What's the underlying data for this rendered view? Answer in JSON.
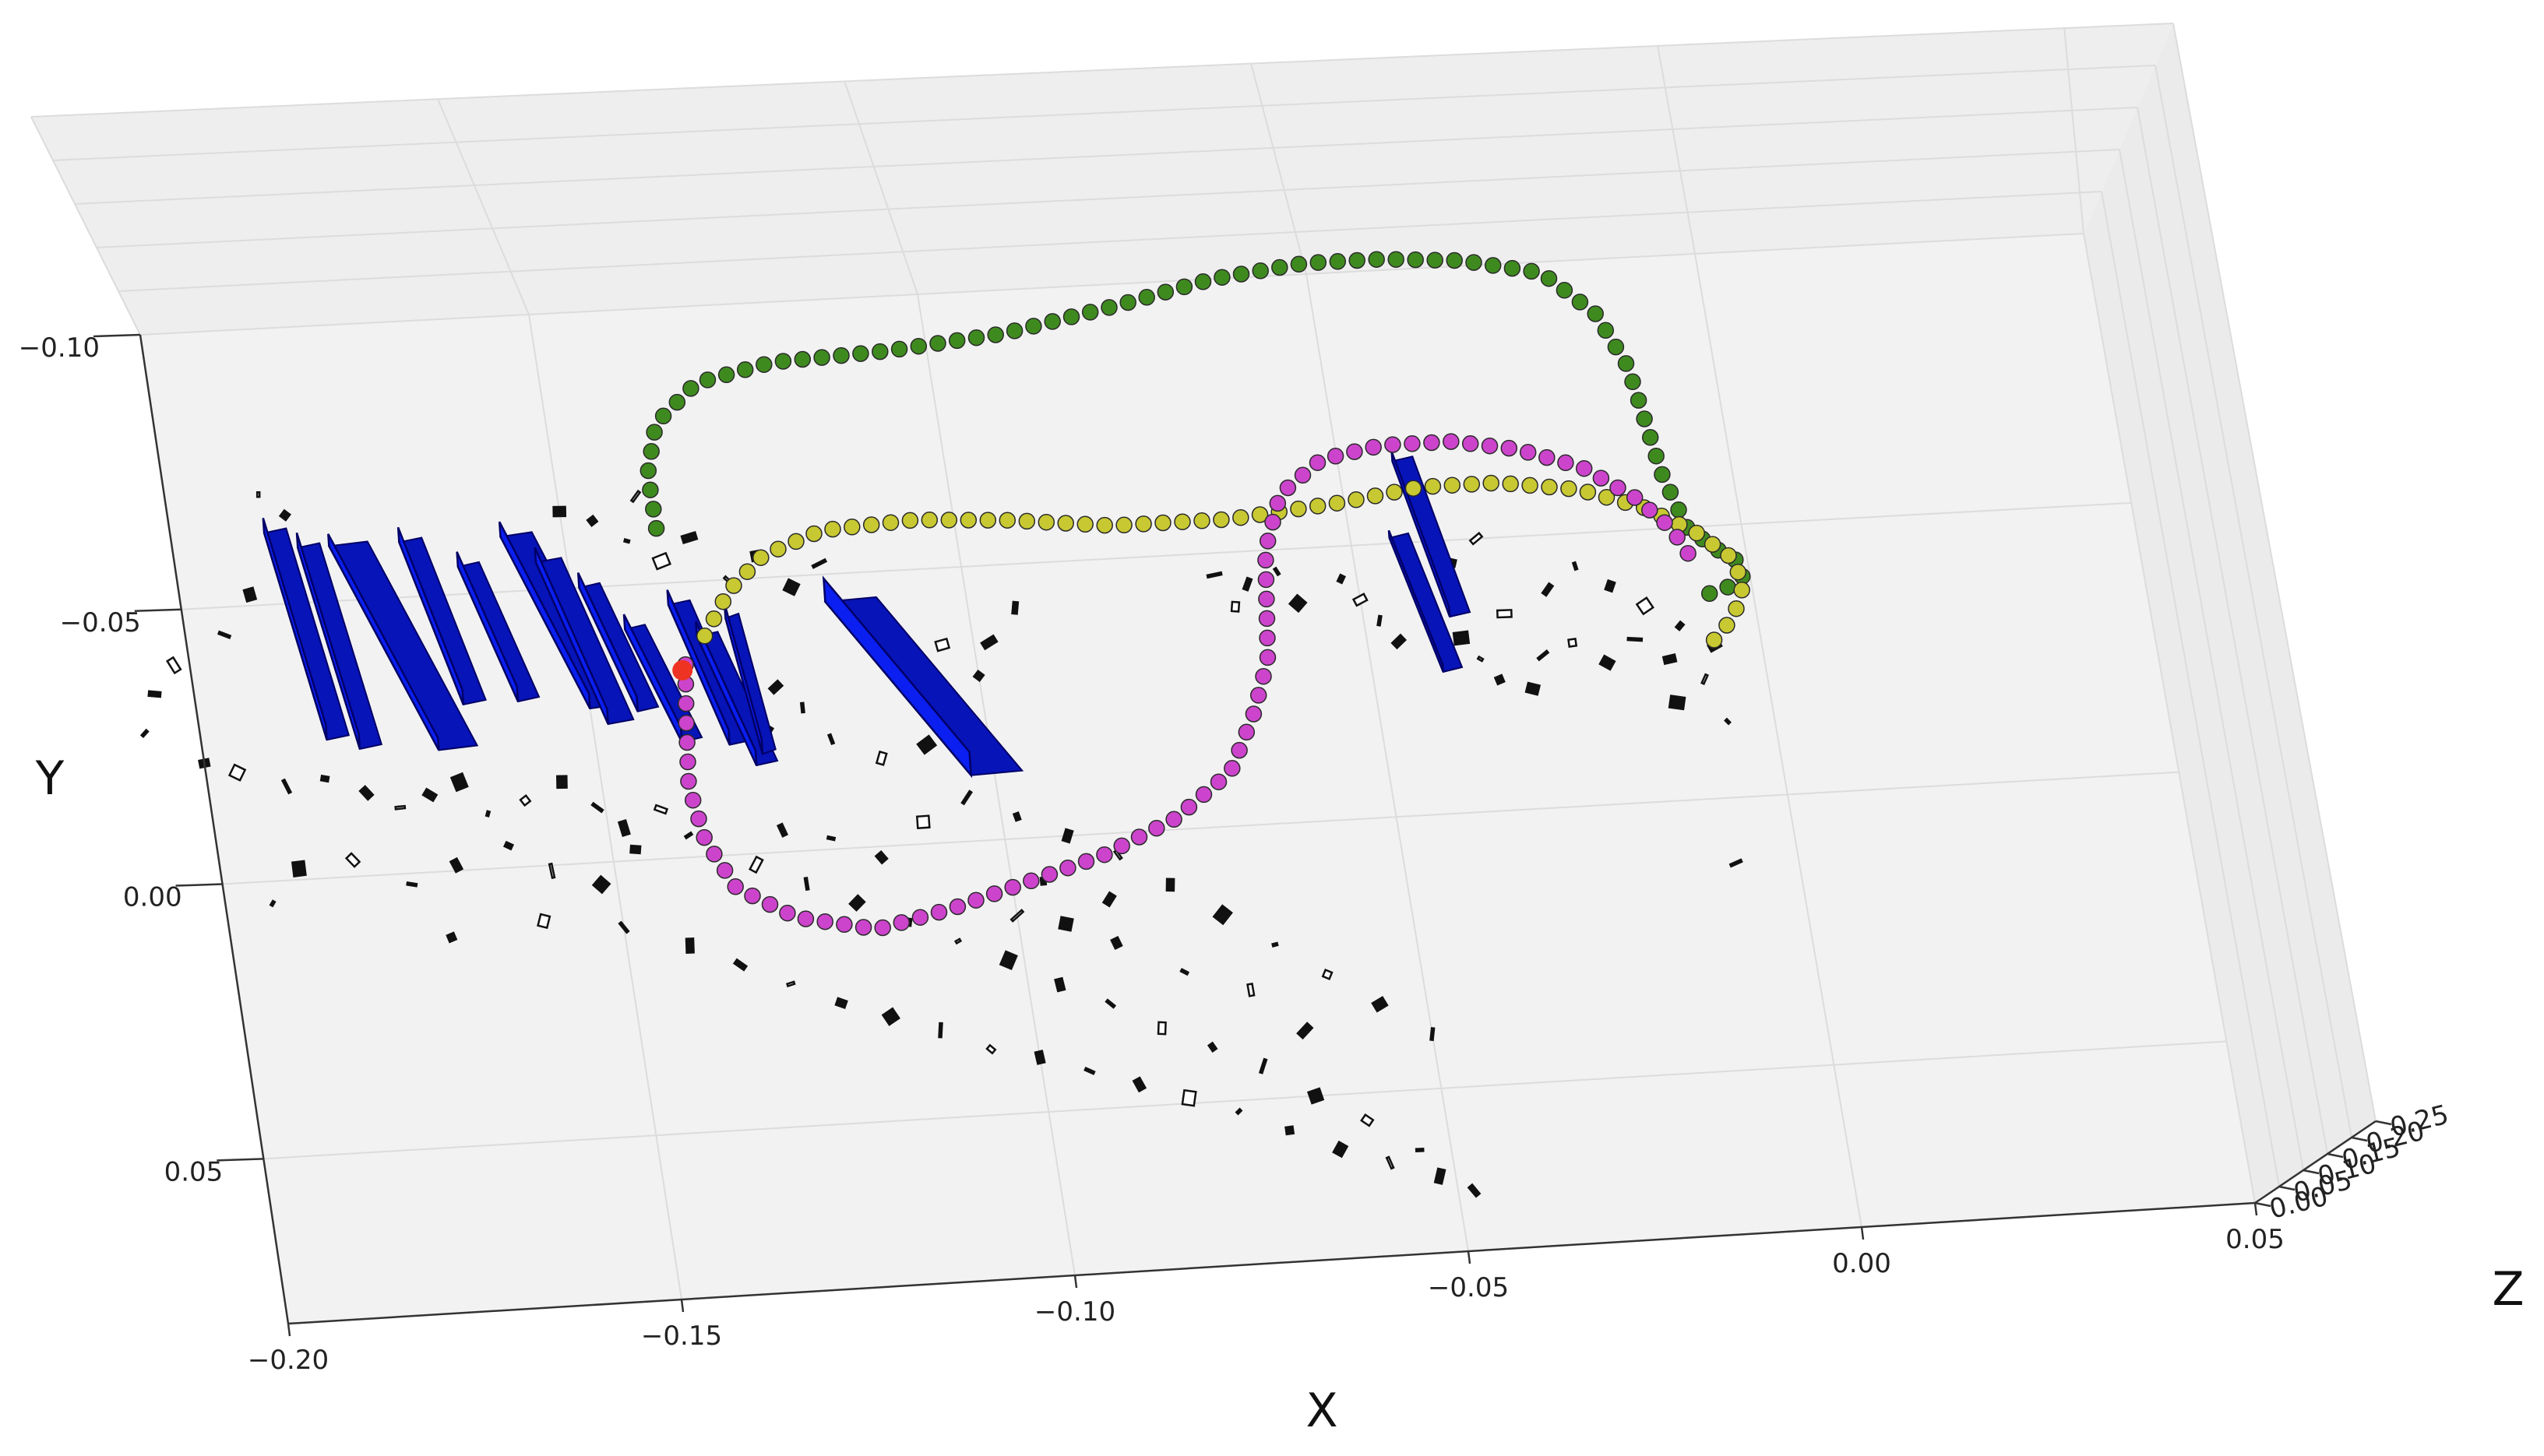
{
  "chart_data": {
    "type": "scatter",
    "projection": "3d",
    "grid": true,
    "axes": {
      "x": {
        "label": "X",
        "lim": [
          -0.2,
          0.05
        ],
        "ticks": [
          "−0.20",
          "−0.15",
          "−0.10",
          "−0.05",
          "0.00",
          "0.05"
        ]
      },
      "y": {
        "label": "Y",
        "lim": [
          -0.1,
          0.08
        ],
        "ticks": [
          "−0.10",
          "−0.05",
          "0.00",
          "0.05"
        ]
      },
      "z": {
        "label": "Z",
        "lim": [
          0.0,
          0.25
        ],
        "ticks": [
          "0.00",
          "0.05",
          "0.10",
          "0.15",
          "0.20",
          "0.25"
        ]
      }
    },
    "colors": {
      "pane": "#f2f2f2",
      "grid": "#dcdcdc",
      "obstacle_fill": "#0a1ff0",
      "obstacle_edge": "#000066",
      "trajectory_green": "#3f8a1f",
      "trajectory_yellow": "#c8c832",
      "trajectory_magenta": "#cc44cc",
      "start_point": "#ee3322",
      "landmark_outline": "#111111"
    },
    "series": [
      {
        "color": "trajectory_green",
        "points": [
          [
            -0.138,
            -0.06
          ],
          [
            -0.138,
            -0.07
          ],
          [
            -0.136,
            -0.079
          ],
          [
            -0.13,
            -0.086
          ],
          [
            -0.12,
            -0.089
          ],
          [
            -0.105,
            -0.09
          ],
          [
            -0.09,
            -0.092
          ],
          [
            -0.075,
            -0.096
          ],
          [
            -0.062,
            -0.1
          ],
          [
            -0.05,
            -0.102
          ],
          [
            -0.04,
            -0.102
          ],
          [
            -0.03,
            -0.101
          ],
          [
            -0.02,
            -0.098
          ],
          [
            -0.014,
            -0.09
          ],
          [
            -0.011,
            -0.08
          ],
          [
            -0.01,
            -0.07
          ],
          [
            -0.009,
            -0.06
          ],
          [
            -0.007,
            -0.05
          ],
          [
            -0.004,
            -0.046
          ],
          [
            -0.001,
            -0.043
          ],
          [
            -0.001,
            -0.04
          ],
          [
            -0.004,
            -0.038
          ],
          [
            -0.008,
            -0.037
          ]
        ]
      },
      {
        "color": "trajectory_yellow",
        "points": [
          [
            -0.134,
            -0.04
          ],
          [
            -0.13,
            -0.048
          ],
          [
            -0.125,
            -0.054
          ],
          [
            -0.117,
            -0.058
          ],
          [
            -0.105,
            -0.059
          ],
          [
            -0.093,
            -0.058
          ],
          [
            -0.08,
            -0.056
          ],
          [
            -0.065,
            -0.056
          ],
          [
            -0.05,
            -0.058
          ],
          [
            -0.04,
            -0.06
          ],
          [
            -0.03,
            -0.06
          ],
          [
            -0.02,
            -0.058
          ],
          [
            -0.012,
            -0.054
          ],
          [
            -0.006,
            -0.049
          ],
          [
            -0.002,
            -0.044
          ],
          [
            -0.001,
            -0.039
          ],
          [
            -0.003,
            -0.033
          ],
          [
            -0.006,
            -0.029
          ]
        ]
      },
      {
        "color": "trajectory_magenta",
        "points": [
          [
            -0.137,
            -0.035
          ],
          [
            -0.138,
            -0.025
          ],
          [
            -0.139,
            -0.013
          ],
          [
            -0.138,
            -0.003
          ],
          [
            -0.135,
            0.006
          ],
          [
            -0.128,
            0.012
          ],
          [
            -0.118,
            0.015
          ],
          [
            -0.108,
            0.012
          ],
          [
            -0.098,
            0.008
          ],
          [
            -0.088,
            0.004
          ],
          [
            -0.078,
            -0.002
          ],
          [
            -0.07,
            -0.01
          ],
          [
            -0.066,
            -0.02
          ],
          [
            -0.063,
            -0.03
          ],
          [
            -0.062,
            -0.04
          ],
          [
            -0.061,
            -0.05
          ],
          [
            -0.058,
            -0.06
          ],
          [
            -0.052,
            -0.066
          ],
          [
            -0.044,
            -0.068
          ],
          [
            -0.035,
            -0.068
          ],
          [
            -0.027,
            -0.066
          ],
          [
            -0.019,
            -0.062
          ],
          [
            -0.013,
            -0.056
          ],
          [
            -0.009,
            -0.05
          ],
          [
            -0.007,
            -0.044
          ]
        ]
      },
      {
        "color": "start_point",
        "points": [
          [
            -0.1375,
            -0.034
          ]
        ]
      }
    ],
    "obstacles": [
      [
        -0.188,
        -0.063,
        -0.184,
        -0.025,
        0.016
      ],
      [
        -0.184,
        -0.06,
        -0.18,
        -0.023,
        0.016
      ],
      [
        -0.18,
        -0.06,
        -0.17,
        -0.022,
        0.013
      ],
      [
        -0.171,
        -0.06,
        -0.166,
        -0.03,
        0.016
      ],
      [
        -0.164,
        -0.055,
        -0.159,
        -0.03,
        0.016
      ],
      [
        -0.158,
        -0.06,
        -0.15,
        -0.028,
        0.016
      ],
      [
        -0.154,
        -0.055,
        -0.148,
        -0.025,
        0.016
      ],
      [
        -0.149,
        -0.05,
        -0.144,
        -0.027,
        0.016
      ],
      [
        -0.144,
        -0.042,
        -0.139,
        -0.021,
        0.016
      ],
      [
        -0.138,
        -0.046,
        -0.133,
        -0.02,
        0.016
      ],
      [
        -0.135,
        -0.04,
        -0.13,
        -0.016,
        0.016
      ],
      [
        -0.131,
        -0.043,
        -0.129,
        -0.018,
        0.016
      ],
      [
        -0.118,
        -0.045,
        -0.103,
        -0.012,
        0.025
      ],
      [
        -0.043,
        -0.065,
        -0.039,
        -0.036,
        0.01
      ],
      [
        -0.045,
        -0.051,
        -0.041,
        -0.026,
        0.008
      ]
    ],
    "landmarks": [
      [
        -0.188,
        -0.07
      ],
      [
        -0.185,
        -0.066
      ],
      [
        -0.191,
        -0.052
      ],
      [
        -0.195,
        -0.045
      ],
      [
        -0.202,
        -0.04
      ],
      [
        -0.205,
        -0.035
      ],
      [
        -0.207,
        -0.028
      ],
      [
        -0.2,
        -0.022
      ],
      [
        -0.196,
        -0.02
      ],
      [
        -0.19,
        -0.017
      ],
      [
        -0.185,
        -0.018
      ],
      [
        -0.18,
        -0.015
      ],
      [
        -0.176,
        -0.012
      ],
      [
        -0.172,
        -0.014
      ],
      [
        -0.168,
        -0.016
      ],
      [
        -0.165,
        -0.01
      ],
      [
        -0.16,
        -0.012
      ],
      [
        -0.155,
        -0.015
      ],
      [
        -0.151,
        -0.01
      ],
      [
        -0.148,
        -0.006
      ],
      [
        -0.143,
        -0.009
      ],
      [
        -0.14,
        -0.004
      ],
      [
        -0.147,
        -0.002
      ],
      [
        -0.152,
        0.004
      ],
      [
        -0.158,
        0.001
      ],
      [
        -0.163,
        -0.004
      ],
      [
        -0.17,
        -0.001
      ],
      [
        -0.176,
        0.002
      ],
      [
        -0.183,
        -0.003
      ],
      [
        -0.19,
        -0.002
      ],
      [
        -0.194,
        0.004
      ],
      [
        -0.172,
        0.012
      ],
      [
        -0.16,
        0.01
      ],
      [
        -0.15,
        0.012
      ],
      [
        -0.142,
        0.016
      ],
      [
        -0.136,
        0.02
      ],
      [
        -0.13,
        0.024
      ],
      [
        -0.124,
        0.028
      ],
      [
        -0.118,
        0.031
      ],
      [
        -0.112,
        0.034
      ],
      [
        -0.106,
        0.038
      ],
      [
        -0.1,
        0.04
      ],
      [
        -0.094,
        0.043
      ],
      [
        -0.088,
        0.046
      ],
      [
        -0.082,
        0.049
      ],
      [
        -0.076,
        0.052
      ],
      [
        -0.07,
        0.056
      ],
      [
        -0.064,
        0.06
      ],
      [
        -0.058,
        0.063
      ],
      [
        -0.052,
        0.066
      ],
      [
        -0.048,
        0.069
      ],
      [
        -0.054,
        0.061
      ],
      [
        -0.06,
        0.055
      ],
      [
        -0.066,
        0.05
      ],
      [
        -0.072,
        0.044
      ],
      [
        -0.078,
        0.04
      ],
      [
        -0.084,
        0.036
      ],
      [
        -0.09,
        0.031
      ],
      [
        -0.096,
        0.027
      ],
      [
        -0.102,
        0.022
      ],
      [
        -0.108,
        0.018
      ],
      [
        -0.114,
        0.014
      ],
      [
        -0.12,
        0.01
      ],
      [
        -0.126,
        0.006
      ],
      [
        -0.132,
        0.002
      ],
      [
        -0.128,
        -0.004
      ],
      [
        -0.122,
        -0.002
      ],
      [
        -0.116,
        0.002
      ],
      [
        -0.11,
        -0.004
      ],
      [
        -0.104,
        -0.008
      ],
      [
        -0.098,
        -0.004
      ],
      [
        -0.092,
        0.0
      ],
      [
        -0.086,
        0.004
      ],
      [
        -0.08,
        0.01
      ],
      [
        -0.074,
        0.016
      ],
      [
        -0.068,
        0.022
      ],
      [
        -0.062,
        0.028
      ],
      [
        -0.056,
        0.034
      ],
      [
        -0.05,
        0.04
      ],
      [
        -0.066,
        0.038
      ],
      [
        -0.072,
        0.03
      ],
      [
        -0.08,
        0.026
      ],
      [
        -0.088,
        0.02
      ],
      [
        -0.094,
        0.016
      ],
      [
        -0.1,
        0.014
      ],
      [
        -0.096,
        0.008
      ],
      [
        -0.088,
        0.012
      ],
      [
        -0.12,
        -0.02
      ],
      [
        -0.114,
        -0.016
      ],
      [
        -0.108,
        -0.018
      ],
      [
        -0.102,
        -0.022
      ],
      [
        -0.1,
        -0.03
      ],
      [
        -0.104,
        -0.036
      ],
      [
        -0.11,
        -0.038
      ],
      [
        -0.098,
        -0.036
      ],
      [
        -0.094,
        -0.042
      ],
      [
        -0.13,
        -0.05
      ],
      [
        -0.126,
        -0.054
      ],
      [
        -0.122,
        -0.048
      ],
      [
        -0.118,
        -0.052
      ],
      [
        -0.114,
        -0.044
      ],
      [
        -0.126,
        -0.03
      ],
      [
        -0.123,
        -0.026
      ],
      [
        -0.128,
        -0.022
      ],
      [
        -0.138,
        -0.054
      ],
      [
        -0.142,
        -0.058
      ],
      [
        -0.146,
        -0.062
      ],
      [
        -0.15,
        -0.064
      ],
      [
        -0.14,
        -0.066
      ],
      [
        -0.134,
        -0.058
      ],
      [
        -0.064,
        -0.044
      ],
      [
        -0.06,
        -0.046
      ],
      [
        -0.066,
        -0.04
      ],
      [
        -0.058,
        -0.04
      ],
      [
        -0.068,
        -0.046
      ],
      [
        -0.052,
        -0.044
      ],
      [
        -0.05,
        -0.04
      ],
      [
        -0.048,
        -0.036
      ],
      [
        -0.046,
        -0.032
      ],
      [
        -0.038,
        -0.032
      ],
      [
        -0.036,
        -0.028
      ],
      [
        -0.034,
        -0.024
      ],
      [
        -0.03,
        -0.022
      ],
      [
        -0.028,
        -0.028
      ],
      [
        -0.032,
        -0.036
      ],
      [
        -0.026,
        -0.04
      ],
      [
        -0.022,
        -0.044
      ],
      [
        -0.018,
        -0.04
      ],
      [
        -0.014,
        -0.036
      ],
      [
        -0.016,
        -0.03
      ],
      [
        -0.01,
        -0.032
      ],
      [
        -0.012,
        -0.026
      ],
      [
        -0.008,
        -0.022
      ],
      [
        -0.006,
        -0.028
      ],
      [
        -0.012,
        -0.018
      ],
      [
        -0.006,
        -0.014
      ],
      [
        -0.024,
        -0.03
      ],
      [
        -0.02,
        -0.026
      ],
      [
        -0.008,
        0.012
      ],
      [
        -0.038,
        -0.046
      ],
      [
        -0.034,
        -0.05
      ]
    ]
  }
}
